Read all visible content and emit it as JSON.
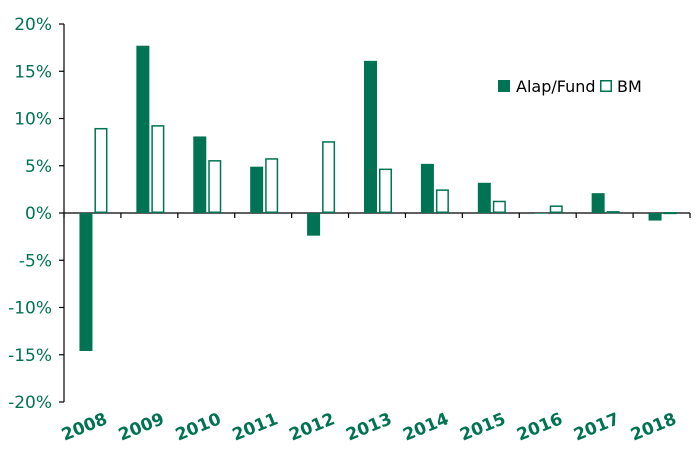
{
  "chart_data": {
    "type": "bar",
    "categories": [
      "2008",
      "2009",
      "2010",
      "2011",
      "2012",
      "2013",
      "2014",
      "2015",
      "2016",
      "2017",
      "2018"
    ],
    "series": [
      {
        "name": "Alap/Fund",
        "values": [
          -14.6,
          17.7,
          8.1,
          4.9,
          -2.4,
          16.1,
          5.2,
          3.2,
          0.0,
          2.1,
          -0.8
        ],
        "style": "filled"
      },
      {
        "name": "BM",
        "values": [
          9.0,
          9.3,
          5.6,
          5.8,
          7.6,
          4.7,
          2.5,
          1.3,
          0.8,
          0.2,
          0.1
        ],
        "style": "outline"
      }
    ],
    "yticks": [
      -20,
      -15,
      -10,
      -5,
      0,
      5,
      10,
      15,
      20
    ],
    "ytick_labels": [
      "-20%",
      "-15%",
      "-10%",
      "-5%",
      "0%",
      "5%",
      "10%",
      "15%",
      "20%"
    ],
    "ylim": [
      -20,
      20
    ],
    "title": "",
    "xlabel": "",
    "ylabel": "",
    "grid": false,
    "legend_position": "top-right",
    "colors": {
      "primary": "#007352",
      "axis": "#000000",
      "label": "#007352"
    }
  }
}
